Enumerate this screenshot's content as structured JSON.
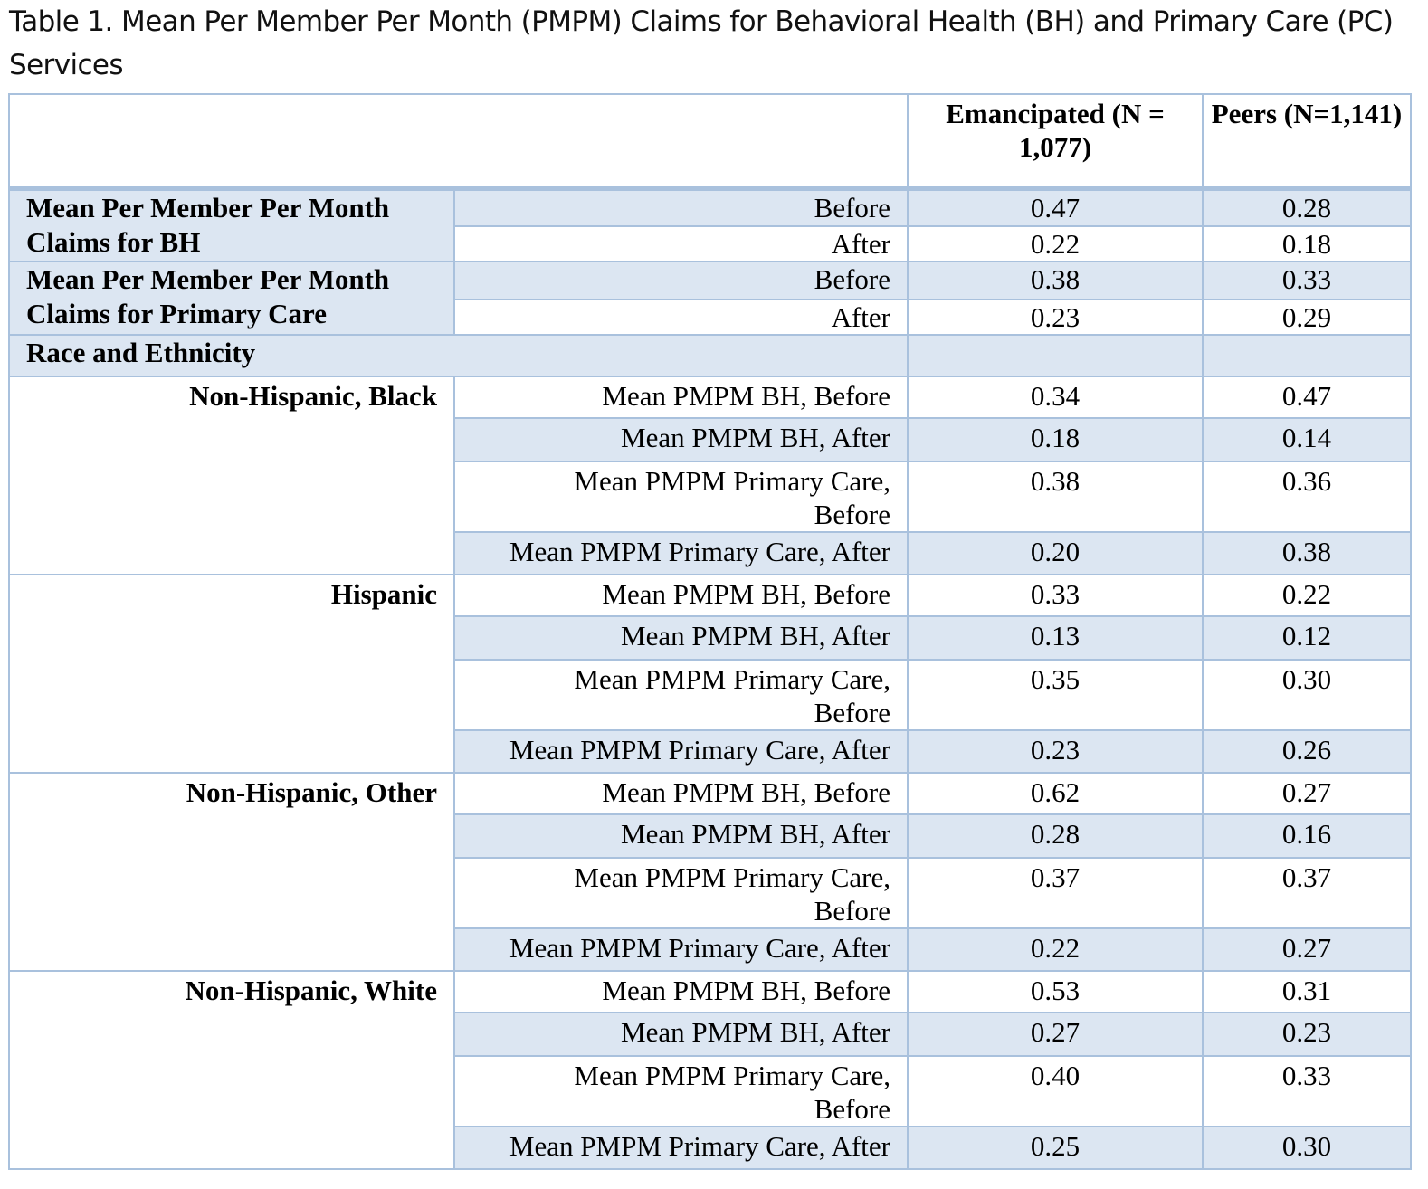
{
  "caption": "Table 1. Mean Per Member Per Month (PMPM) Claims for Behavioral Health (BH) and Primary Care (PC) Services",
  "header": {
    "emancipated": "Emancipated (N = 1,077)",
    "peers": "Peers (N=1,141)"
  },
  "summary": [
    {
      "group": "Mean Per Member Per Month Claims for BH",
      "rows": [
        {
          "label": "Before",
          "emancipated": "0.47",
          "peers": "0.28"
        },
        {
          "label": "After",
          "emancipated": "0.22",
          "peers": "0.18"
        }
      ]
    },
    {
      "group": "Mean Per Member Per Month Claims for Primary Care",
      "rows": [
        {
          "label": "Before",
          "emancipated": "0.38",
          "peers": "0.33"
        },
        {
          "label": "After",
          "emancipated": "0.23",
          "peers": "0.29"
        }
      ]
    }
  ],
  "race_heading": "Race and Ethnicity",
  "race_groups": [
    {
      "name": "Non-Hispanic, Black",
      "rows": [
        {
          "label": "Mean PMPM BH, Before",
          "emancipated": "0.34",
          "peers": "0.47"
        },
        {
          "label": "Mean PMPM BH, After",
          "emancipated": "0.18",
          "peers": "0.14"
        },
        {
          "label": "Mean PMPM Primary Care, Before",
          "emancipated": "0.38",
          "peers": "0.36"
        },
        {
          "label": "Mean PMPM Primary Care, After",
          "emancipated": "0.20",
          "peers": "0.38"
        }
      ]
    },
    {
      "name": "Hispanic",
      "rows": [
        {
          "label": "Mean PMPM BH, Before",
          "emancipated": "0.33",
          "peers": "0.22"
        },
        {
          "label": "Mean PMPM BH, After",
          "emancipated": "0.13",
          "peers": "0.12"
        },
        {
          "label": "Mean PMPM Primary Care, Before",
          "emancipated": "0.35",
          "peers": "0.30"
        },
        {
          "label": "Mean PMPM Primary Care, After",
          "emancipated": "0.23",
          "peers": "0.26"
        }
      ]
    },
    {
      "name": "Non-Hispanic, Other",
      "rows": [
        {
          "label": "Mean PMPM BH, Before",
          "emancipated": "0.62",
          "peers": "0.27"
        },
        {
          "label": "Mean PMPM BH, After",
          "emancipated": "0.28",
          "peers": "0.16"
        },
        {
          "label": "Mean PMPM Primary Care, Before",
          "emancipated": "0.37",
          "peers": "0.37"
        },
        {
          "label": "Mean PMPM Primary Care, After",
          "emancipated": "0.22",
          "peers": "0.27"
        }
      ]
    },
    {
      "name": "Non-Hispanic, White",
      "rows": [
        {
          "label": "Mean PMPM BH, Before",
          "emancipated": "0.53",
          "peers": "0.31"
        },
        {
          "label": "Mean PMPM BH, After",
          "emancipated": "0.27",
          "peers": "0.23"
        },
        {
          "label": "Mean PMPM Primary Care, Before",
          "emancipated": "0.40",
          "peers": "0.33"
        },
        {
          "label": "Mean PMPM Primary Care, After",
          "emancipated": "0.25",
          "peers": "0.30"
        }
      ]
    }
  ],
  "colors": {
    "shade": "#dce6f2",
    "border": "#a9c1dd"
  }
}
